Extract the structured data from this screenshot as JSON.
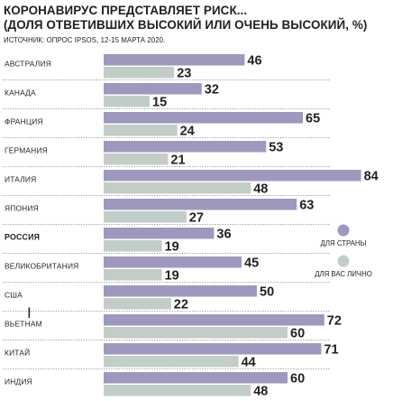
{
  "title_line1": "КОРОНАВИРУС ПРЕДСТАВЛЯЕТ РИСК...",
  "title_line2": "(ДОЛЯ ОТВЕТИВШИХ ВЫСОКИЙ ИЛИ ОЧЕНЬ ВЫСОКИЙ, %)",
  "source": "ИСТОЧНИК:  ОПРОС IPSOS, 12-15 МАРТА 2020.",
  "colors": {
    "country": "#9f98be",
    "personal": "#c3cdc8",
    "text": "#231f20"
  },
  "chart_data": {
    "type": "bar",
    "orientation": "horizontal",
    "title": "КОРОНАВИРУС ПРЕДСТАВЛЯЕТ РИСК... (ДОЛЯ ОТВЕТИВШИХ ВЫСОКИЙ ИЛИ ОЧЕНЬ ВЫСОКИЙ, %)",
    "categories": [
      "АВСТРАЛИЯ",
      "КАНАДА",
      "ФРАНЦИЯ",
      "ГЕРМАНИЯ",
      "ИТАЛИЯ",
      "ЯПОНИЯ",
      "РОССИЯ",
      "ВЕЛИКОБРИТАНИЯ",
      "США",
      "ВЬЕТНАМ",
      "КИТАЙ",
      "ИНДИЯ"
    ],
    "highlight_category": "РОССИЯ",
    "series": [
      {
        "name": "ДЛЯ СТРАНЫ",
        "values": [
          46,
          32,
          65,
          53,
          84,
          63,
          36,
          45,
          50,
          72,
          71,
          60
        ]
      },
      {
        "name": "ДЛЯ ВАС ЛИЧНО",
        "values": [
          23,
          15,
          24,
          21,
          48,
          27,
          19,
          19,
          22,
          60,
          44,
          48
        ]
      }
    ],
    "xlim": [
      0,
      84
    ],
    "legend": "right"
  }
}
